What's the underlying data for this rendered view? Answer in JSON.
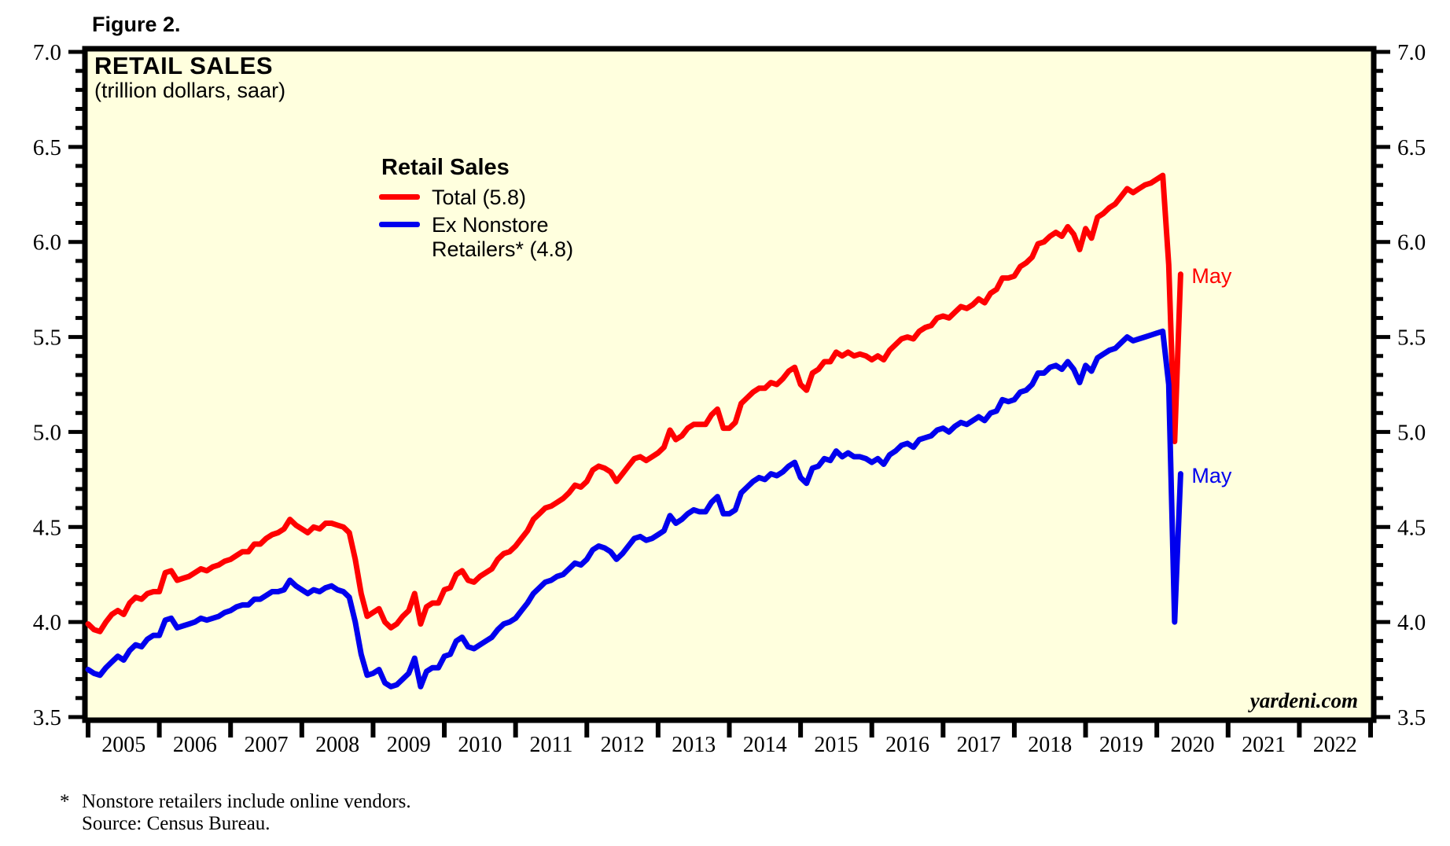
{
  "figure_label": "Figure 2.",
  "header": {
    "title": "RETAIL SALES",
    "subtitle": "(trillion dollars, saar)"
  },
  "legend": {
    "header": "Retail Sales",
    "items": [
      {
        "label": "Total (5.8)",
        "lines": [
          "Total (5.8)"
        ],
        "color": "#ff0000"
      },
      {
        "label": "Ex Nonstore Retailers* (4.8)",
        "lines": [
          "Ex Nonstore",
          "Retailers* (4.8)"
        ],
        "color": "#0000ee"
      }
    ]
  },
  "watermark": "yardeni.com",
  "footnote": {
    "marker": "*",
    "line1": "Nonstore retailers include online vendors.",
    "line2": "Source: Census Bureau."
  },
  "colors": {
    "total_line": "#ff0000",
    "ex_nonstore_line": "#0000ee",
    "plot_background": "#ffffde",
    "frame": "#000000",
    "annotation_total": "#ff0000",
    "annotation_ex_nonstore": "#0000ee"
  },
  "chart_data": {
    "type": "line",
    "title": "RETAIL SALES",
    "subtitle": "(trillion dollars, saar)",
    "x_axis": {
      "years": [
        "2005",
        "2006",
        "2007",
        "2008",
        "2009",
        "2010",
        "2011",
        "2012",
        "2013",
        "2014",
        "2015",
        "2016",
        "2017",
        "2018",
        "2019",
        "2020",
        "2021",
        "2022"
      ],
      "range_start": 2005.0,
      "range_end": 2023.0,
      "data_start_month": "2005-01",
      "data_end_month": "2020-05"
    },
    "y_axis": {
      "min": 3.5,
      "max": 7.0,
      "major_step": 0.5,
      "minor_step": 0.1,
      "labels": [
        "7.0",
        "6.5",
        "6.0",
        "5.5",
        "5.0",
        "4.5",
        "4.0",
        "3.5"
      ],
      "label_values": [
        7.0,
        6.5,
        6.0,
        5.5,
        5.0,
        4.5,
        4.0,
        3.5
      ],
      "sides": [
        "left",
        "right"
      ]
    },
    "grid": false,
    "legend_position": "upper-left-inside",
    "series": [
      {
        "name": "Total (5.8)",
        "color": "#ff0000",
        "latest_label": "May",
        "latest_value": 5.83,
        "values": [
          3.99,
          3.96,
          3.95,
          4.0,
          4.04,
          4.06,
          4.04,
          4.1,
          4.13,
          4.12,
          4.15,
          4.16,
          4.16,
          4.26,
          4.27,
          4.22,
          4.23,
          4.24,
          4.26,
          4.28,
          4.27,
          4.29,
          4.3,
          4.32,
          4.33,
          4.35,
          4.37,
          4.37,
          4.41,
          4.41,
          4.44,
          4.46,
          4.47,
          4.49,
          4.54,
          4.51,
          4.49,
          4.47,
          4.5,
          4.49,
          4.52,
          4.52,
          4.51,
          4.5,
          4.47,
          4.33,
          4.15,
          4.03,
          4.05,
          4.07,
          4.0,
          3.97,
          3.99,
          4.03,
          4.06,
          4.15,
          3.99,
          4.08,
          4.1,
          4.1,
          4.17,
          4.18,
          4.25,
          4.27,
          4.22,
          4.21,
          4.24,
          4.26,
          4.28,
          4.33,
          4.36,
          4.37,
          4.4,
          4.44,
          4.48,
          4.54,
          4.57,
          4.6,
          4.61,
          4.63,
          4.65,
          4.68,
          4.72,
          4.71,
          4.74,
          4.8,
          4.82,
          4.81,
          4.79,
          4.74,
          4.78,
          4.82,
          4.86,
          4.87,
          4.85,
          4.87,
          4.89,
          4.92,
          5.01,
          4.96,
          4.98,
          5.02,
          5.04,
          5.04,
          5.04,
          5.09,
          5.12,
          5.02,
          5.02,
          5.05,
          5.15,
          5.18,
          5.21,
          5.23,
          5.23,
          5.26,
          5.25,
          5.28,
          5.32,
          5.34,
          5.25,
          5.22,
          5.31,
          5.33,
          5.37,
          5.37,
          5.42,
          5.4,
          5.42,
          5.4,
          5.41,
          5.4,
          5.38,
          5.4,
          5.38,
          5.43,
          5.46,
          5.49,
          5.5,
          5.49,
          5.53,
          5.55,
          5.56,
          5.6,
          5.61,
          5.6,
          5.63,
          5.66,
          5.65,
          5.67,
          5.7,
          5.68,
          5.73,
          5.75,
          5.81,
          5.81,
          5.82,
          5.87,
          5.89,
          5.92,
          5.99,
          6.0,
          6.03,
          6.05,
          6.03,
          6.08,
          6.04,
          5.96,
          6.07,
          6.02,
          6.13,
          6.15,
          6.18,
          6.2,
          6.24,
          6.28,
          6.26,
          6.28,
          6.3,
          6.31,
          6.33,
          6.35,
          5.88,
          4.95,
          5.83
        ]
      },
      {
        "name": "Ex Nonstore Retailers* (4.8)",
        "color": "#0000ee",
        "latest_label": "May",
        "latest_value": 4.78,
        "values": [
          3.75,
          3.73,
          3.72,
          3.76,
          3.79,
          3.82,
          3.8,
          3.85,
          3.88,
          3.87,
          3.91,
          3.93,
          3.93,
          4.01,
          4.02,
          3.97,
          3.98,
          3.99,
          4.0,
          4.02,
          4.01,
          4.02,
          4.03,
          4.05,
          4.06,
          4.08,
          4.09,
          4.09,
          4.12,
          4.12,
          4.14,
          4.16,
          4.16,
          4.17,
          4.22,
          4.19,
          4.17,
          4.15,
          4.17,
          4.16,
          4.18,
          4.19,
          4.17,
          4.16,
          4.13,
          4.0,
          3.83,
          3.72,
          3.73,
          3.75,
          3.68,
          3.66,
          3.67,
          3.7,
          3.73,
          3.81,
          3.66,
          3.74,
          3.76,
          3.76,
          3.82,
          3.83,
          3.9,
          3.92,
          3.87,
          3.86,
          3.88,
          3.9,
          3.92,
          3.96,
          3.99,
          4.0,
          4.02,
          4.06,
          4.1,
          4.15,
          4.18,
          4.21,
          4.22,
          4.24,
          4.25,
          4.28,
          4.31,
          4.3,
          4.33,
          4.38,
          4.4,
          4.39,
          4.37,
          4.33,
          4.36,
          4.4,
          4.44,
          4.45,
          4.43,
          4.44,
          4.46,
          4.48,
          4.56,
          4.52,
          4.54,
          4.57,
          4.59,
          4.58,
          4.58,
          4.63,
          4.66,
          4.57,
          4.57,
          4.59,
          4.68,
          4.71,
          4.74,
          4.76,
          4.75,
          4.78,
          4.77,
          4.79,
          4.82,
          4.84,
          4.76,
          4.73,
          4.81,
          4.82,
          4.86,
          4.85,
          4.9,
          4.87,
          4.89,
          4.87,
          4.87,
          4.86,
          4.84,
          4.86,
          4.83,
          4.88,
          4.9,
          4.93,
          4.94,
          4.92,
          4.96,
          4.97,
          4.98,
          5.01,
          5.02,
          5.0,
          5.03,
          5.05,
          5.04,
          5.06,
          5.08,
          5.06,
          5.1,
          5.11,
          5.17,
          5.16,
          5.17,
          5.21,
          5.22,
          5.25,
          5.31,
          5.31,
          5.34,
          5.35,
          5.33,
          5.37,
          5.33,
          5.26,
          5.35,
          5.32,
          5.39,
          5.41,
          5.43,
          5.44,
          5.47,
          5.5,
          5.48,
          5.49,
          5.5,
          5.51,
          5.52,
          5.53,
          5.25,
          4.0,
          4.78
        ]
      }
    ],
    "annotations": [
      {
        "text": "May",
        "series": 0,
        "color": "#ff0000"
      },
      {
        "text": "May",
        "series": 1,
        "color": "#0000ee"
      }
    ]
  }
}
